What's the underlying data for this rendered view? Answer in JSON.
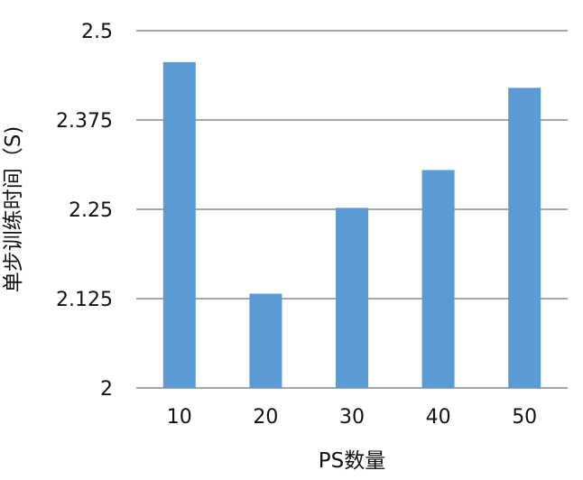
{
  "chart_data": {
    "type": "bar",
    "categories": [
      "10",
      "20",
      "30",
      "40",
      "50"
    ],
    "values": [
      2.456,
      2.132,
      2.252,
      2.305,
      2.42
    ],
    "title": "",
    "xlabel": "PS数量",
    "ylabel": "单步训练时间（S)",
    "ylim": [
      2,
      2.5
    ],
    "yticks": [
      "2",
      "2.125",
      "2.25",
      "2.375",
      "2.5"
    ],
    "grid": true,
    "legend": "none",
    "bar_color": "#5b9bd5",
    "grid_color": "#a6a6a6"
  }
}
